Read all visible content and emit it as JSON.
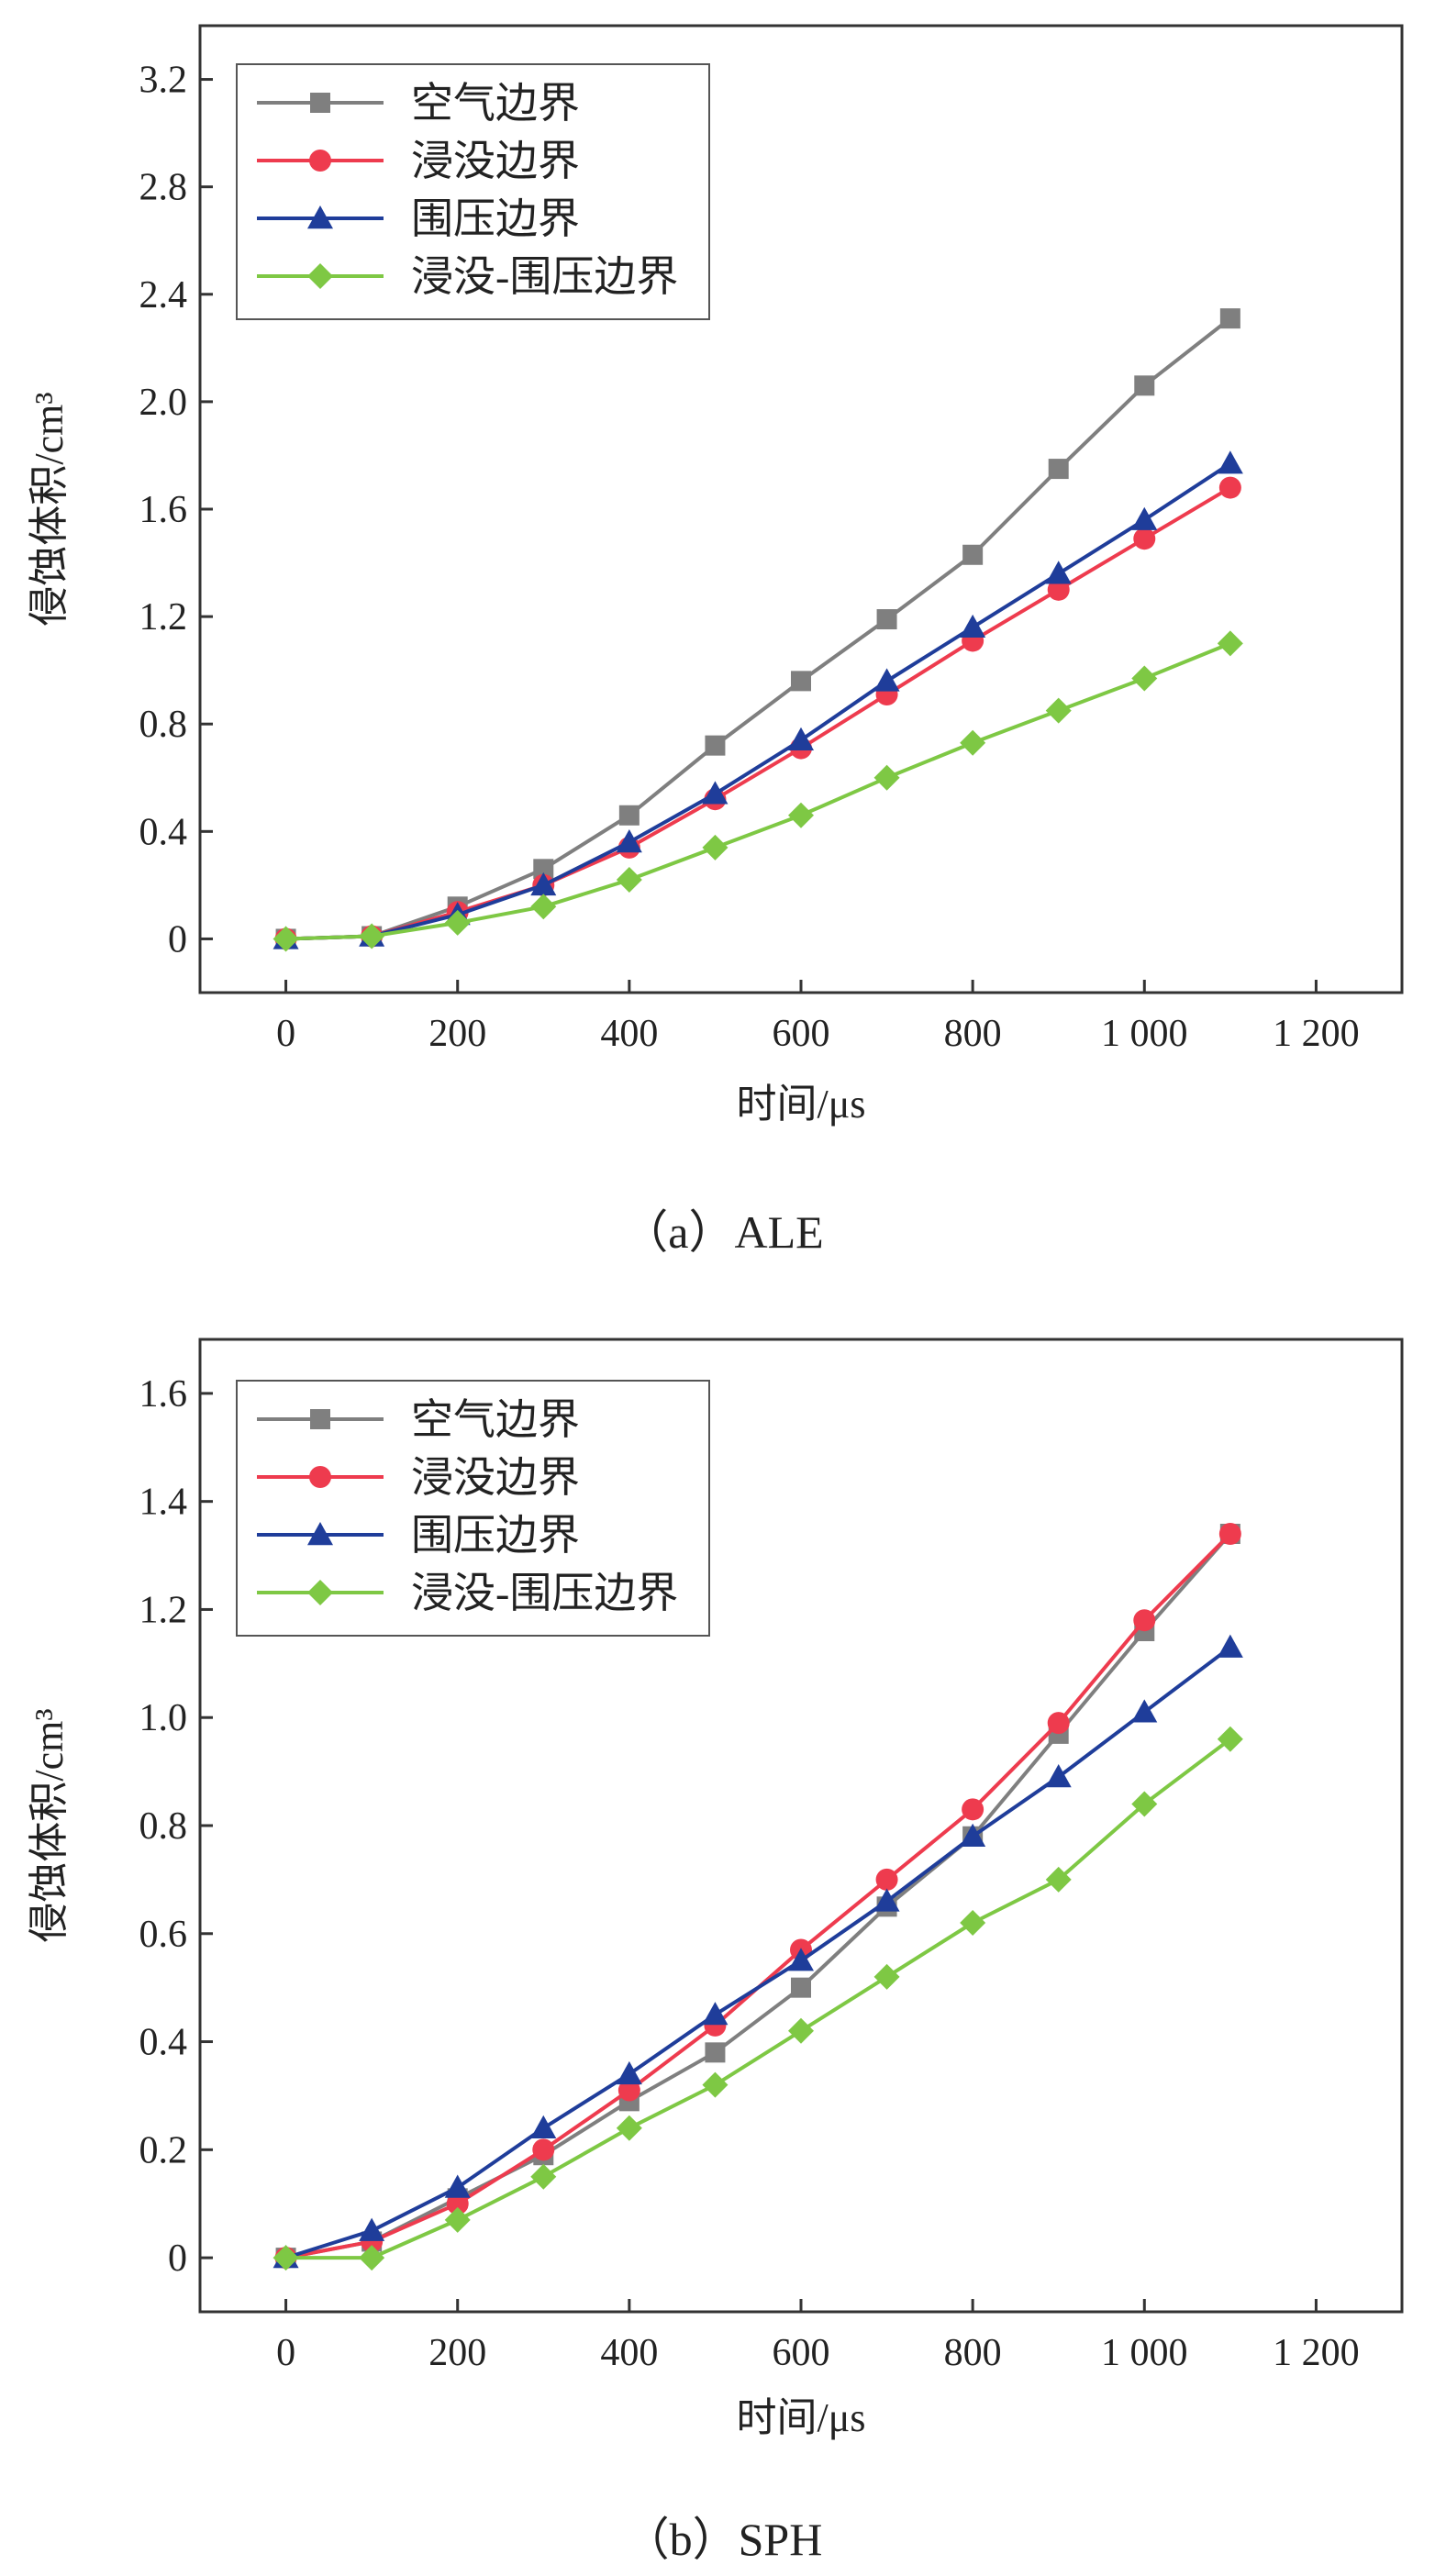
{
  "chart_data": [
    {
      "type": "line",
      "caption": "（a）ALE",
      "xlabel": "时间/μs",
      "ylabel": "侵蚀体积/cm³",
      "xlim": [
        -100,
        1300
      ],
      "ylim": [
        -0.2,
        3.4
      ],
      "xticks": [
        0,
        200,
        400,
        600,
        800,
        1000,
        1200
      ],
      "xtick_labels": [
        "0",
        "200",
        "400",
        "600",
        "800",
        "1 000",
        "1 200"
      ],
      "yticks": [
        0,
        0.4,
        0.8,
        1.2,
        1.6,
        2.0,
        2.4,
        2.8,
        3.2
      ],
      "ytick_labels": [
        "0",
        "0.4",
        "0.8",
        "1.2",
        "1.6",
        "2.0",
        "2.4",
        "2.8",
        "3.2"
      ],
      "legend_position": "top-left",
      "x": [
        0,
        100,
        200,
        300,
        400,
        500,
        600,
        700,
        800,
        900,
        1000,
        1100
      ],
      "series": [
        {
          "name": "空气边界",
          "marker": "square",
          "color": "#7f7f7f",
          "values": [
            0,
            0.01,
            0.12,
            0.26,
            0.46,
            0.72,
            0.96,
            1.19,
            1.43,
            1.75,
            2.06,
            2.31
          ]
        },
        {
          "name": "浸没边界",
          "marker": "circle",
          "color": "#ee3b4e",
          "values": [
            0,
            0.01,
            0.1,
            0.2,
            0.34,
            0.52,
            0.71,
            0.91,
            1.11,
            1.3,
            1.49,
            1.68
          ]
        },
        {
          "name": "围压边界",
          "marker": "triangle",
          "color": "#1f3d9a",
          "values": [
            0,
            0.01,
            0.09,
            0.2,
            0.36,
            0.54,
            0.74,
            0.96,
            1.16,
            1.36,
            1.56,
            1.77
          ]
        },
        {
          "name": "浸没-围压边界",
          "marker": "diamond",
          "color": "#7ec844",
          "values": [
            0,
            0.01,
            0.06,
            0.12,
            0.22,
            0.34,
            0.46,
            0.6,
            0.73,
            0.85,
            0.97,
            1.1
          ]
        }
      ]
    },
    {
      "type": "line",
      "caption": "（b）SPH",
      "xlabel": "时间/μs",
      "ylabel": "侵蚀体积/cm³",
      "xlim": [
        -100,
        1300
      ],
      "ylim": [
        -0.1,
        1.7
      ],
      "xticks": [
        0,
        200,
        400,
        600,
        800,
        1000,
        1200
      ],
      "xtick_labels": [
        "0",
        "200",
        "400",
        "600",
        "800",
        "1 000",
        "1 200"
      ],
      "yticks": [
        0,
        0.2,
        0.4,
        0.6,
        0.8,
        1.0,
        1.2,
        1.4,
        1.6
      ],
      "ytick_labels": [
        "0",
        "0.2",
        "0.4",
        "0.6",
        "0.8",
        "1.0",
        "1.2",
        "1.4",
        "1.6"
      ],
      "legend_position": "top-left",
      "x": [
        0,
        100,
        200,
        300,
        400,
        500,
        600,
        700,
        800,
        900,
        1000,
        1100
      ],
      "series": [
        {
          "name": "空气边界",
          "marker": "square",
          "color": "#7f7f7f",
          "values": [
            0,
            0.03,
            0.11,
            0.19,
            0.29,
            0.38,
            0.5,
            0.65,
            0.78,
            0.97,
            1.16,
            1.34
          ]
        },
        {
          "name": "浸没边界",
          "marker": "circle",
          "color": "#ee3b4e",
          "values": [
            0,
            0.03,
            0.1,
            0.2,
            0.31,
            0.43,
            0.57,
            0.7,
            0.83,
            0.99,
            1.18,
            1.34
          ]
        },
        {
          "name": "围压边界",
          "marker": "triangle",
          "color": "#1f3d9a",
          "values": [
            0,
            0.05,
            0.13,
            0.24,
            0.34,
            0.45,
            0.55,
            0.66,
            0.78,
            0.89,
            1.01,
            1.13
          ]
        },
        {
          "name": "浸没-围压边界",
          "marker": "diamond",
          "color": "#7ec844",
          "values": [
            0,
            0,
            0.07,
            0.15,
            0.24,
            0.32,
            0.42,
            0.52,
            0.62,
            0.7,
            0.84,
            0.96
          ]
        }
      ]
    }
  ]
}
